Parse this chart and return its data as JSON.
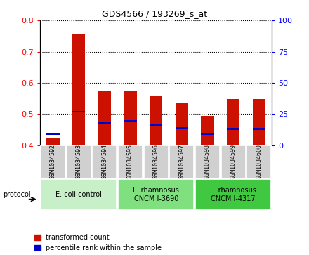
{
  "title": "GDS4566 / 193269_s_at",
  "samples": [
    "GSM1034592",
    "GSM1034593",
    "GSM1034594",
    "GSM1034595",
    "GSM1034596",
    "GSM1034597",
    "GSM1034598",
    "GSM1034599",
    "GSM1034600"
  ],
  "red_values": [
    0.425,
    0.755,
    0.575,
    0.572,
    0.558,
    0.537,
    0.495,
    0.548,
    0.548
  ],
  "blue_values": [
    0.437,
    0.508,
    0.472,
    0.477,
    0.464,
    0.455,
    0.437,
    0.453,
    0.453
  ],
  "ylim_left": [
    0.4,
    0.8
  ],
  "ylim_right": [
    0,
    100
  ],
  "yticks_left": [
    0.4,
    0.5,
    0.6,
    0.7,
    0.8
  ],
  "yticks_right": [
    0,
    25,
    50,
    75,
    100
  ],
  "protocol_groups": [
    {
      "label": "E. coli control",
      "start": 0,
      "end": 3,
      "color": "#c8f0c8"
    },
    {
      "label": "L. rhamnosus\nCNCM I-3690",
      "start": 3,
      "end": 6,
      "color": "#80e080"
    },
    {
      "label": "L. rhamnosus\nCNCM I-4317",
      "start": 6,
      "end": 9,
      "color": "#40c840"
    }
  ],
  "bar_width": 0.5,
  "red_color": "#cc1100",
  "blue_color": "#0000cc",
  "sample_bg": "#d0d0d0"
}
